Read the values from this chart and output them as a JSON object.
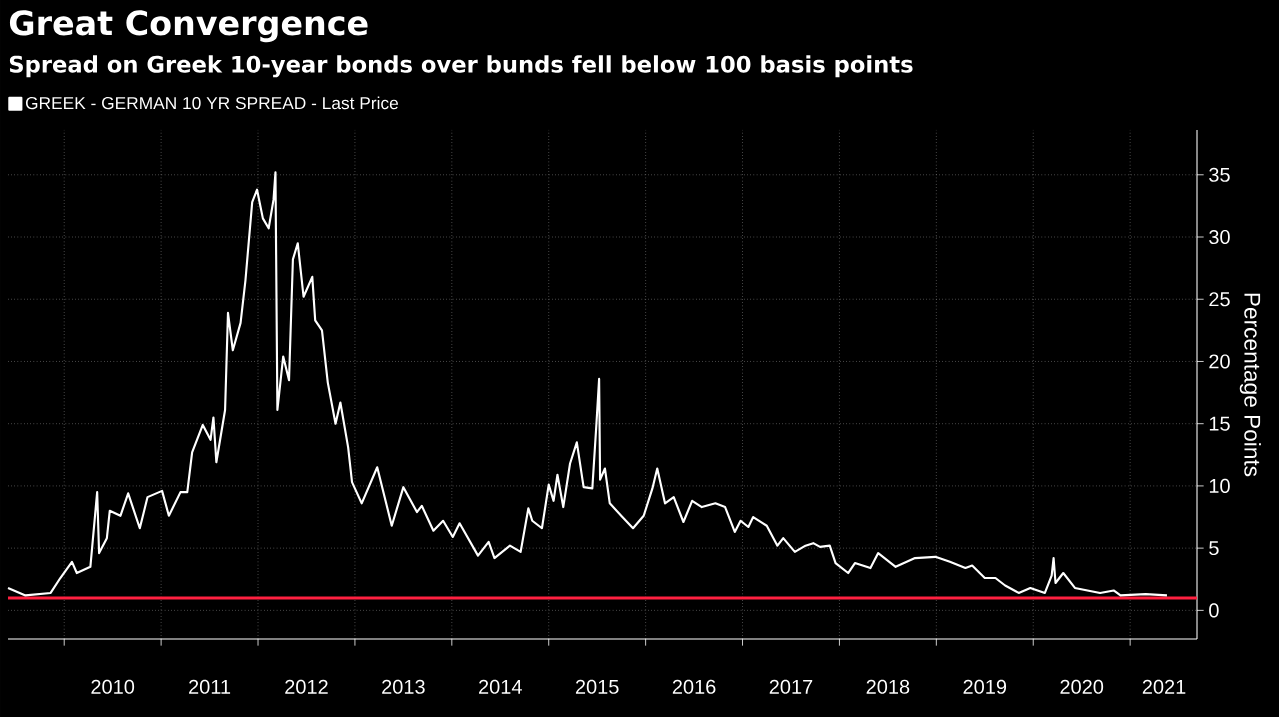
{
  "chart_data": {
    "type": "line",
    "title": "Great Convergence",
    "subtitle": "Spread on Greek 10-year bonds over bunds fell below 100 basis points",
    "ylabel": "Percentage Points",
    "x": [
      2009.42,
      2009.6,
      2009.86,
      2009.96,
      2010.08,
      2010.13,
      2010.27,
      2010.34,
      2010.36,
      2010.44,
      2010.47,
      2010.58,
      2010.66,
      2010.78,
      2010.86,
      2011.01,
      2011.08,
      2011.2,
      2011.27,
      2011.32,
      2011.43,
      2011.51,
      2011.54,
      2011.57,
      2011.66,
      2011.69,
      2011.74,
      2011.82,
      2011.87,
      2011.94,
      2011.99,
      2012.05,
      2012.11,
      2012.16,
      2012.18,
      2012.2,
      2012.26,
      2012.32,
      2012.36,
      2012.41,
      2012.47,
      2012.56,
      2012.59,
      2012.66,
      2012.72,
      2012.8,
      2012.85,
      2012.93,
      2012.97,
      2013.07,
      2013.23,
      2013.38,
      2013.5,
      2013.64,
      2013.69,
      2013.81,
      2013.91,
      2014.01,
      2014.08,
      2014.27,
      2014.38,
      2014.44,
      2014.6,
      2014.71,
      2014.79,
      2014.83,
      2014.93,
      2015.0,
      2015.05,
      2015.09,
      2015.15,
      2015.22,
      2015.29,
      2015.36,
      2015.45,
      2015.49,
      2015.52,
      2015.53,
      2015.58,
      2015.63,
      2015.76,
      2015.87,
      2015.98,
      2016.07,
      2016.12,
      2016.2,
      2016.29,
      2016.39,
      2016.48,
      2016.58,
      2016.72,
      2016.82,
      2016.92,
      2016.98,
      2017.06,
      2017.11,
      2017.25,
      2017.36,
      2017.42,
      2017.54,
      2017.65,
      2017.73,
      2017.8,
      2017.9,
      2017.96,
      2018.09,
      2018.16,
      2018.32,
      2018.4,
      2018.58,
      2018.78,
      2018.99,
      2019.14,
      2019.3,
      2019.37,
      2019.5,
      2019.61,
      2019.71,
      2019.85,
      2019.97,
      2020.12,
      2020.19,
      2020.21,
      2020.23,
      2020.31,
      2020.43,
      2020.69,
      2020.83,
      2020.9,
      2021.16,
      2021.38
    ],
    "series": [
      {
        "name": "GREEK - GERMAN 10 YR SPREAD - Last Price",
        "color": "#ffffff",
        "values": [
          1.8,
          1.2,
          1.4,
          2.6,
          3.9,
          3.0,
          3.5,
          9.5,
          4.6,
          5.8,
          8.0,
          7.6,
          9.4,
          6.6,
          9.1,
          9.6,
          7.6,
          9.5,
          9.5,
          12.7,
          14.9,
          13.7,
          15.5,
          11.9,
          16.1,
          23.9,
          20.9,
          23.1,
          26.5,
          32.8,
          33.8,
          31.5,
          30.7,
          33.0,
          35.2,
          16.1,
          20.4,
          18.5,
          28.2,
          29.5,
          25.2,
          26.8,
          23.3,
          22.5,
          18.3,
          15.0,
          16.7,
          13.1,
          10.3,
          8.6,
          11.5,
          6.8,
          9.9,
          7.9,
          8.4,
          6.4,
          7.2,
          5.9,
          7.0,
          4.4,
          5.5,
          4.2,
          5.2,
          4.7,
          8.2,
          7.2,
          6.6,
          10.1,
          8.8,
          10.9,
          8.3,
          11.8,
          13.5,
          9.9,
          9.8,
          14.7,
          18.6,
          10.5,
          11.4,
          8.6,
          7.5,
          6.6,
          7.6,
          9.8,
          11.4,
          8.6,
          9.1,
          7.1,
          8.8,
          8.3,
          8.6,
          8.3,
          6.3,
          7.2,
          6.7,
          7.5,
          6.8,
          5.2,
          5.8,
          4.7,
          5.2,
          5.4,
          5.1,
          5.2,
          3.8,
          3.0,
          3.8,
          3.4,
          4.6,
          3.5,
          4.2,
          4.3,
          3.9,
          3.4,
          3.6,
          2.6,
          2.6,
          2.0,
          1.4,
          1.8,
          1.4,
          2.8,
          4.2,
          2.2,
          3.0,
          1.8,
          1.4,
          1.6,
          1.2,
          1.3,
          1.2
        ]
      }
    ],
    "xlim": [
      2009.42,
      2021.69
    ],
    "xticks": [
      {
        "value": 2010,
        "label": null
      },
      {
        "value": 2011,
        "label": null
      },
      {
        "value": 2012,
        "label": null
      },
      {
        "value": 2013,
        "label": null
      },
      {
        "value": 2014,
        "label": null
      },
      {
        "value": 2015,
        "label": null
      },
      {
        "value": 2016,
        "label": null
      },
      {
        "value": 2017,
        "label": null
      },
      {
        "value": 2018,
        "label": null
      },
      {
        "value": 2019,
        "label": null
      },
      {
        "value": 2020,
        "label": null
      },
      {
        "value": 2021,
        "label": null
      },
      {
        "value": 2010.5,
        "label": "2010"
      },
      {
        "value": 2011.5,
        "label": "2011"
      },
      {
        "value": 2012.5,
        "label": "2012"
      },
      {
        "value": 2013.5,
        "label": "2013"
      },
      {
        "value": 2014.5,
        "label": "2014"
      },
      {
        "value": 2015.5,
        "label": "2015"
      },
      {
        "value": 2016.5,
        "label": "2016"
      },
      {
        "value": 2017.5,
        "label": "2017"
      },
      {
        "value": 2018.5,
        "label": "2018"
      },
      {
        "value": 2019.5,
        "label": "2019"
      },
      {
        "value": 2020.5,
        "label": "2020"
      },
      {
        "value": 2021.35,
        "label": "2021"
      }
    ],
    "ylim": [
      -2.3,
      38.6
    ],
    "yticks": [
      0,
      5,
      10,
      15,
      20,
      25,
      30,
      35
    ],
    "ref_lines": [
      {
        "axis": "y",
        "value": 1,
        "color": "#ff2040"
      }
    ],
    "grid": true,
    "legend": "top left",
    "marker": "none",
    "line_style": "solid"
  }
}
